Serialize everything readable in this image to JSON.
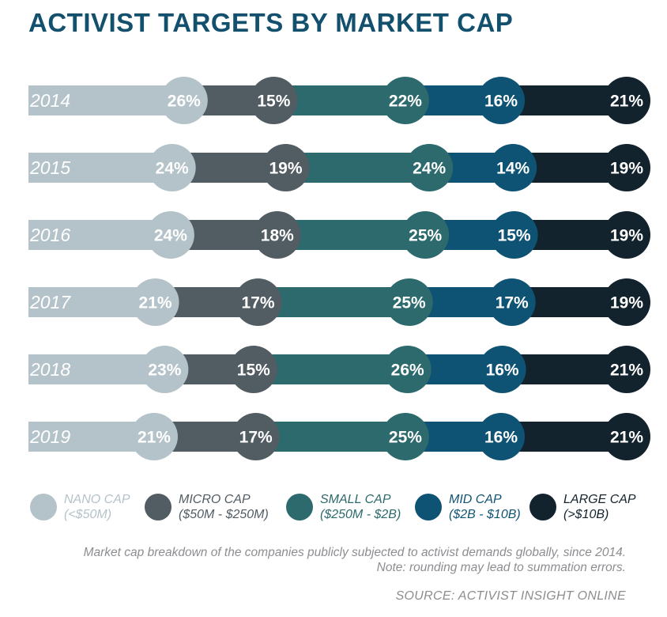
{
  "title": "ACTIVIST TARGETS BY MARKET CAP",
  "chart_data": {
    "type": "bar",
    "orientation": "horizontal",
    "stacked": true,
    "title": "ACTIVIST TARGETS BY MARKET CAP",
    "categories": [
      "2014",
      "2015",
      "2016",
      "2017",
      "2018",
      "2019"
    ],
    "series": [
      {
        "name": "NANO CAP",
        "sub": "(<$50M)",
        "color": "#b4c3c9",
        "values": [
          26,
          24,
          24,
          21,
          23,
          21
        ]
      },
      {
        "name": "MICRO CAP",
        "sub": "($50M - $250M)",
        "color": "#525c63",
        "values": [
          15,
          19,
          18,
          17,
          15,
          17
        ]
      },
      {
        "name": "SMALL CAP",
        "sub": "($250M - $2B)",
        "color": "#2c6a6d",
        "values": [
          22,
          24,
          25,
          25,
          26,
          25
        ]
      },
      {
        "name": "MID CAP",
        "sub": "($2B - $10B)",
        "color": "#0f5374",
        "values": [
          16,
          14,
          15,
          17,
          16,
          16
        ]
      },
      {
        "name": "LARGE CAP",
        "sub": "(>$10B)",
        "color": "#13232e",
        "values": [
          21,
          19,
          19,
          19,
          21,
          21
        ]
      }
    ],
    "value_suffix": "%",
    "legend_position": "bottom",
    "grid": false
  },
  "caption": {
    "line1": "Market cap breakdown of the companies publicly subjected to activist demands globally, since 2014.",
    "line2": "Note: rounding may lead to summation errors."
  },
  "source": "SOURCE: ACTIVIST INSIGHT ONLINE"
}
